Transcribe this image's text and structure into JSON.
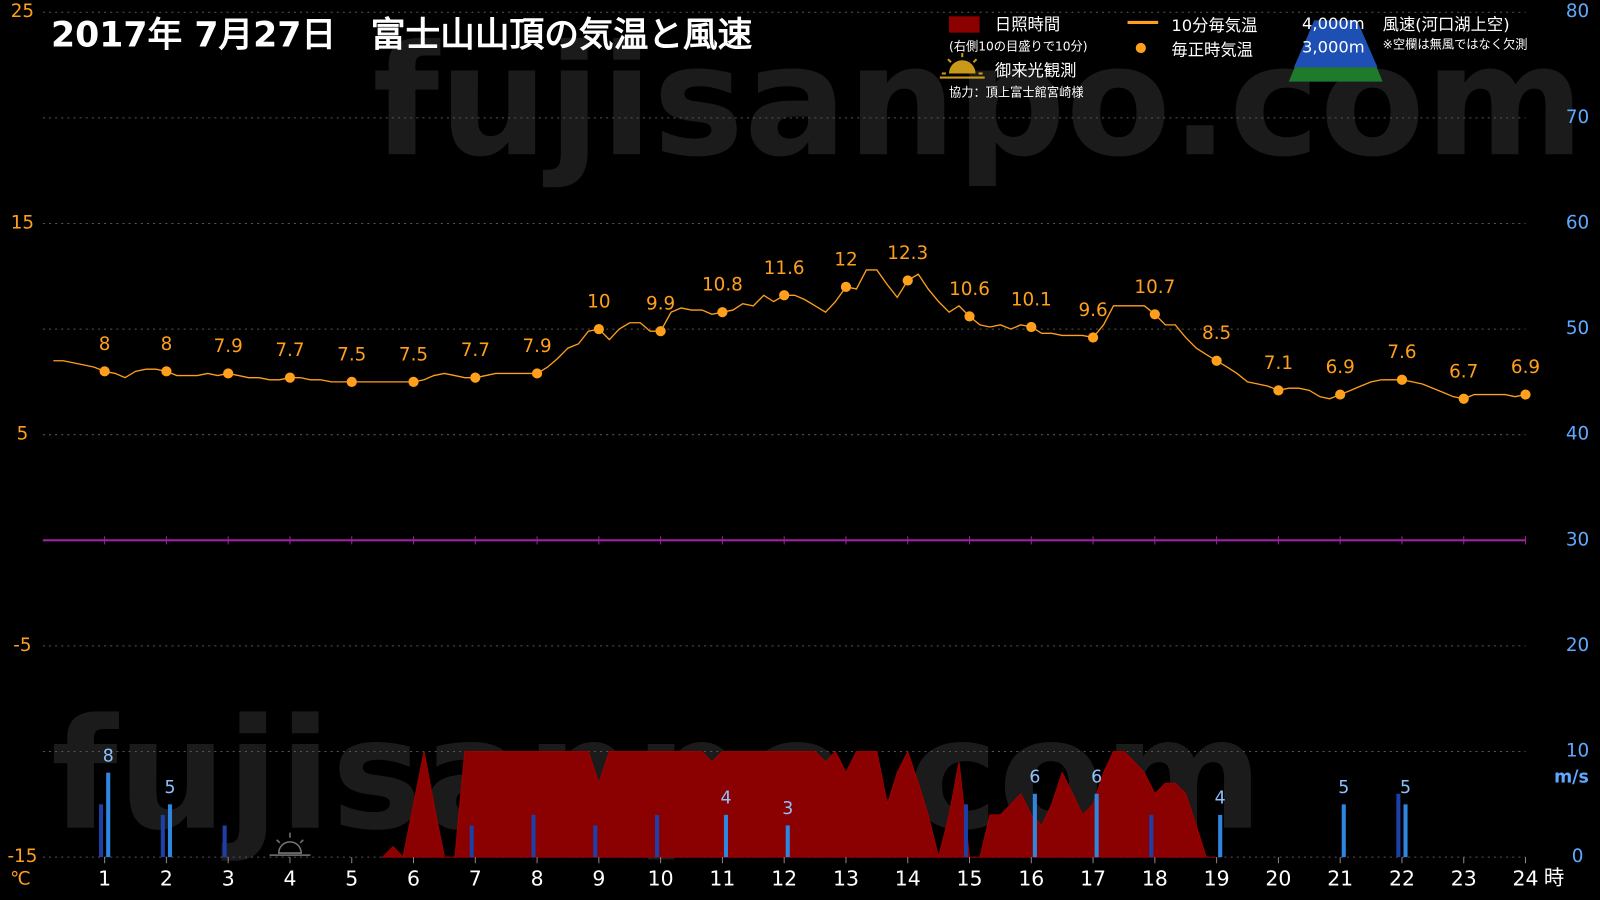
{
  "chart_data": {
    "type": "line",
    "title": "2017年 7月27日　富士山山頂の気温と風速",
    "watermark": "fujisanpo.com",
    "x_unit": "時",
    "y_label": "℃",
    "y2_label": "m/s",
    "xlim": [
      0,
      24
    ],
    "xticks": [
      1,
      2,
      3,
      4,
      5,
      6,
      7,
      8,
      9,
      10,
      11,
      12,
      13,
      14,
      15,
      16,
      17,
      18,
      19,
      20,
      21,
      22,
      23,
      24
    ],
    "ylim": [
      -15,
      25
    ],
    "yticks": [
      -15,
      -5,
      5,
      15,
      25
    ],
    "y2lim": [
      0,
      80
    ],
    "y2ticks": [
      0,
      10,
      20,
      30,
      40,
      50,
      60,
      70,
      80
    ],
    "grid": true,
    "zero_line_color": "#a020a0",
    "series": [
      {
        "name": "10分毎気温",
        "type": "line",
        "color": "#ff9f1c",
        "x": [
          0.17,
          0.33,
          0.5,
          0.67,
          0.83,
          1,
          1.17,
          1.33,
          1.5,
          1.67,
          1.83,
          2,
          2.17,
          2.33,
          2.5,
          2.67,
          2.83,
          3,
          3.17,
          3.33,
          3.5,
          3.67,
          3.83,
          4,
          4.17,
          4.33,
          4.5,
          4.67,
          4.83,
          5,
          5.17,
          5.33,
          5.5,
          5.67,
          5.83,
          6,
          6.17,
          6.33,
          6.5,
          6.67,
          6.83,
          7,
          7.17,
          7.33,
          7.5,
          7.67,
          7.83,
          8,
          8.17,
          8.33,
          8.5,
          8.67,
          8.83,
          9,
          9.17,
          9.33,
          9.5,
          9.67,
          9.83,
          10,
          10.17,
          10.33,
          10.5,
          10.67,
          10.83,
          11,
          11.17,
          11.33,
          11.5,
          11.67,
          11.83,
          12,
          12.17,
          12.33,
          12.5,
          12.67,
          12.83,
          13,
          13.17,
          13.33,
          13.5,
          13.67,
          13.83,
          14,
          14.17,
          14.33,
          14.5,
          14.67,
          14.83,
          15,
          15.17,
          15.33,
          15.5,
          15.67,
          15.83,
          16,
          16.17,
          16.33,
          16.5,
          16.67,
          16.83,
          17,
          17.17,
          17.33,
          17.5,
          17.67,
          17.83,
          18,
          18.17,
          18.33,
          18.5,
          18.67,
          18.83,
          19,
          19.17,
          19.33,
          19.5,
          19.67,
          19.83,
          20,
          20.17,
          20.33,
          20.5,
          20.67,
          20.83,
          21,
          21.17,
          21.33,
          21.5,
          21.67,
          21.83,
          22,
          22.17,
          22.33,
          22.5,
          22.67,
          22.83,
          23,
          23.17,
          23.33,
          23.5,
          23.67,
          23.83,
          24
        ],
        "values": [
          8.5,
          8.5,
          8.4,
          8.3,
          8.2,
          8.0,
          7.9,
          7.7,
          8.0,
          8.1,
          8.1,
          8.0,
          7.8,
          7.8,
          7.8,
          7.9,
          7.8,
          7.9,
          7.8,
          7.7,
          7.7,
          7.6,
          7.6,
          7.7,
          7.7,
          7.6,
          7.6,
          7.5,
          7.5,
          7.5,
          7.5,
          7.5,
          7.5,
          7.5,
          7.5,
          7.5,
          7.6,
          7.8,
          7.9,
          7.8,
          7.7,
          7.7,
          7.8,
          7.9,
          7.9,
          7.9,
          7.9,
          7.9,
          8.2,
          8.6,
          9.1,
          9.3,
          9.9,
          10.0,
          9.5,
          10.0,
          10.3,
          10.3,
          9.9,
          9.9,
          10.8,
          11.0,
          10.9,
          10.9,
          10.7,
          10.8,
          10.9,
          11.2,
          11.1,
          11.6,
          11.3,
          11.6,
          11.6,
          11.4,
          11.1,
          10.8,
          11.3,
          12.0,
          11.9,
          12.8,
          12.8,
          12.1,
          11.5,
          12.3,
          12.6,
          11.9,
          11.3,
          10.8,
          11.1,
          10.6,
          10.2,
          10.1,
          10.2,
          10.0,
          10.2,
          10.1,
          9.8,
          9.8,
          9.7,
          9.7,
          9.7,
          9.6,
          10.2,
          11.1,
          11.1,
          11.1,
          11.1,
          10.7,
          10.2,
          10.2,
          9.6,
          9.1,
          8.8,
          8.5,
          8.2,
          7.9,
          7.5,
          7.4,
          7.3,
          7.1,
          7.2,
          7.2,
          7.1,
          6.8,
          6.7,
          6.9,
          7.1,
          7.3,
          7.5,
          7.6,
          7.6,
          7.6,
          7.5,
          7.4,
          7.2,
          7.0,
          6.8,
          6.7,
          6.9,
          6.9,
          6.9,
          6.9,
          6.8,
          6.9
        ]
      },
      {
        "name": "毎正時気温",
        "type": "scatter",
        "color": "#ff9f1c",
        "show_value_labels": true,
        "x": [
          1,
          2,
          3,
          4,
          5,
          6,
          7,
          8,
          9,
          10,
          11,
          12,
          13,
          14,
          15,
          16,
          17,
          18,
          19,
          20,
          21,
          22,
          23,
          24
        ],
        "values": [
          8,
          8,
          7.9,
          7.7,
          7.5,
          7.5,
          7.7,
          7.9,
          10,
          9.9,
          10.8,
          11.6,
          12,
          12.3,
          10.6,
          10.1,
          9.6,
          10.7,
          8.5,
          7.1,
          6.9,
          7.6,
          6.7,
          6.9
        ]
      },
      {
        "name": "日照時間",
        "type": "area",
        "axis": "y2",
        "color": "#8b0000",
        "legend_note": "(右側10の目盛りで10分)",
        "x": [
          5.5,
          5.67,
          5.83,
          6,
          6.17,
          6.33,
          6.5,
          6.67,
          6.83,
          7,
          7.17,
          7.33,
          7.5,
          7.67,
          7.83,
          8,
          8.17,
          8.33,
          8.5,
          8.67,
          8.83,
          9,
          9.17,
          9.33,
          9.5,
          9.67,
          9.83,
          10,
          10.17,
          10.33,
          10.5,
          10.67,
          10.83,
          11,
          11.17,
          11.33,
          11.5,
          11.67,
          11.83,
          12,
          12.17,
          12.33,
          12.5,
          12.67,
          12.83,
          13,
          13.17,
          13.33,
          13.5,
          13.67,
          13.83,
          14,
          14.17,
          14.33,
          14.5,
          14.67,
          14.83,
          15,
          15.17,
          15.33,
          15.5,
          15.67,
          15.83,
          16,
          16.17,
          16.33,
          16.5,
          16.67,
          16.83,
          17,
          17.17,
          17.33,
          17.5,
          17.67,
          17.83,
          18,
          18.17,
          18.33,
          18.5,
          18.67,
          18.83,
          19
        ],
        "values": [
          0,
          1,
          0,
          5,
          10,
          5,
          0,
          0,
          10,
          10,
          10,
          10,
          10,
          10,
          10,
          10,
          10,
          10,
          10,
          10,
          10,
          7,
          10,
          10,
          10,
          10,
          10,
          10,
          10,
          10,
          10,
          10,
          9,
          10,
          10,
          10,
          10,
          10,
          10,
          10,
          10,
          10,
          10,
          9,
          10,
          8,
          10,
          10,
          10,
          5,
          8,
          10,
          7,
          4,
          0,
          4,
          9,
          0,
          0,
          4,
          4,
          5,
          6,
          4,
          3,
          5,
          8,
          6,
          4,
          5,
          8,
          10,
          10,
          9,
          8,
          6,
          7,
          7,
          6,
          3,
          0,
          0
        ]
      },
      {
        "name": "3,000m",
        "type": "bar",
        "axis": "y2",
        "color": "#1d3fa8",
        "x": [
          1,
          2,
          3,
          4,
          5,
          6,
          7,
          8,
          9,
          10,
          11,
          12,
          13,
          14,
          15,
          16,
          17,
          18,
          19,
          20,
          21,
          22,
          23,
          24
        ],
        "values": [
          5,
          4,
          3,
          null,
          null,
          null,
          3,
          4,
          3,
          4,
          null,
          null,
          null,
          null,
          5,
          null,
          null,
          4,
          null,
          null,
          null,
          6,
          null,
          null
        ]
      },
      {
        "name": "4,000m",
        "type": "bar",
        "axis": "y2",
        "color": "#2f86e0",
        "show_value_labels": true,
        "x": [
          1,
          2,
          3,
          4,
          5,
          6,
          7,
          8,
          9,
          10,
          11,
          12,
          13,
          14,
          15,
          16,
          17,
          18,
          19,
          20,
          21,
          22,
          23,
          24
        ],
        "values": [
          8,
          5,
          null,
          null,
          null,
          null,
          null,
          null,
          null,
          null,
          4,
          3,
          null,
          null,
          null,
          6,
          6,
          null,
          4,
          null,
          5,
          5,
          null,
          null
        ]
      }
    ],
    "wind_legend": "風速(河口湖上空)",
    "missing_note": "※空欄は無風ではなく欠測",
    "sunrise_legend": "御来光観測",
    "sunrise_observation_x": 4,
    "credit": "協力：頂上富士館宮崎様"
  }
}
